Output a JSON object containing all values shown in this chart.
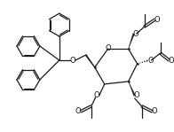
{
  "bg_color": "#ffffff",
  "line_color": "#1a1a1a",
  "lw": 0.9,
  "fig_width": 1.96,
  "fig_height": 1.49,
  "dpi": 100,
  "xlim": [
    0,
    196
  ],
  "ylim": [
    0,
    149
  ]
}
